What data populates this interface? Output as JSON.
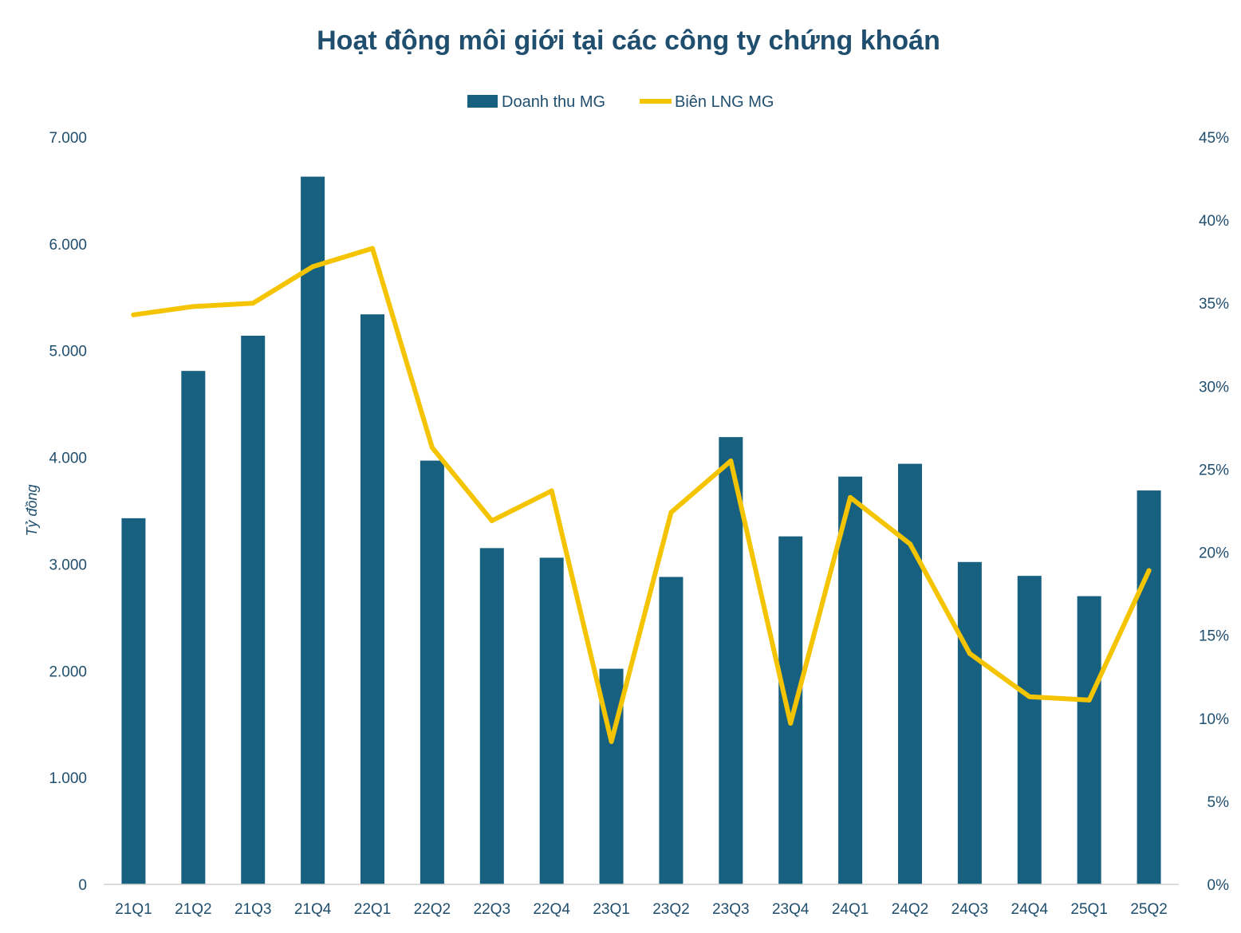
{
  "chart_data": {
    "type": "bar",
    "title": "Hoạt động môi giới tại các công ty chứng khoán",
    "ylabel": "Tỷ đồng",
    "categories": [
      "21Q1",
      "21Q2",
      "21Q3",
      "21Q4",
      "22Q1",
      "22Q2",
      "22Q3",
      "22Q4",
      "23Q1",
      "23Q2",
      "23Q3",
      "23Q4",
      "24Q1",
      "24Q2",
      "24Q3",
      "24Q4",
      "25Q1",
      "25Q2"
    ],
    "y_ticks": [
      "0",
      "1.000",
      "2.000",
      "3.000",
      "4.000",
      "5.000",
      "6.000",
      "7.000"
    ],
    "y2_ticks": [
      "0%",
      "5%",
      "10%",
      "15%",
      "20%",
      "25%",
      "30%",
      "35%",
      "40%",
      "45%"
    ],
    "ylim": [
      0,
      7000
    ],
    "y2lim": [
      0,
      45
    ],
    "legend_position": "top-center",
    "grid": false,
    "series": [
      {
        "name": "Doanh thu MG",
        "type": "bar",
        "axis": "left",
        "color": "#17607f",
        "values": [
          3430,
          4810,
          5140,
          6630,
          5340,
          3970,
          3150,
          3060,
          2020,
          2880,
          4190,
          3260,
          3820,
          3940,
          3020,
          2890,
          2700,
          3690
        ]
      },
      {
        "name": "Biên LNG MG",
        "type": "line",
        "axis": "right",
        "color": "#f5c400",
        "values": [
          34.3,
          34.8,
          35.0,
          37.2,
          38.3,
          26.3,
          21.9,
          23.7,
          8.6,
          22.4,
          25.5,
          9.7,
          23.3,
          20.5,
          13.9,
          11.3,
          11.1,
          18.9
        ]
      }
    ]
  }
}
